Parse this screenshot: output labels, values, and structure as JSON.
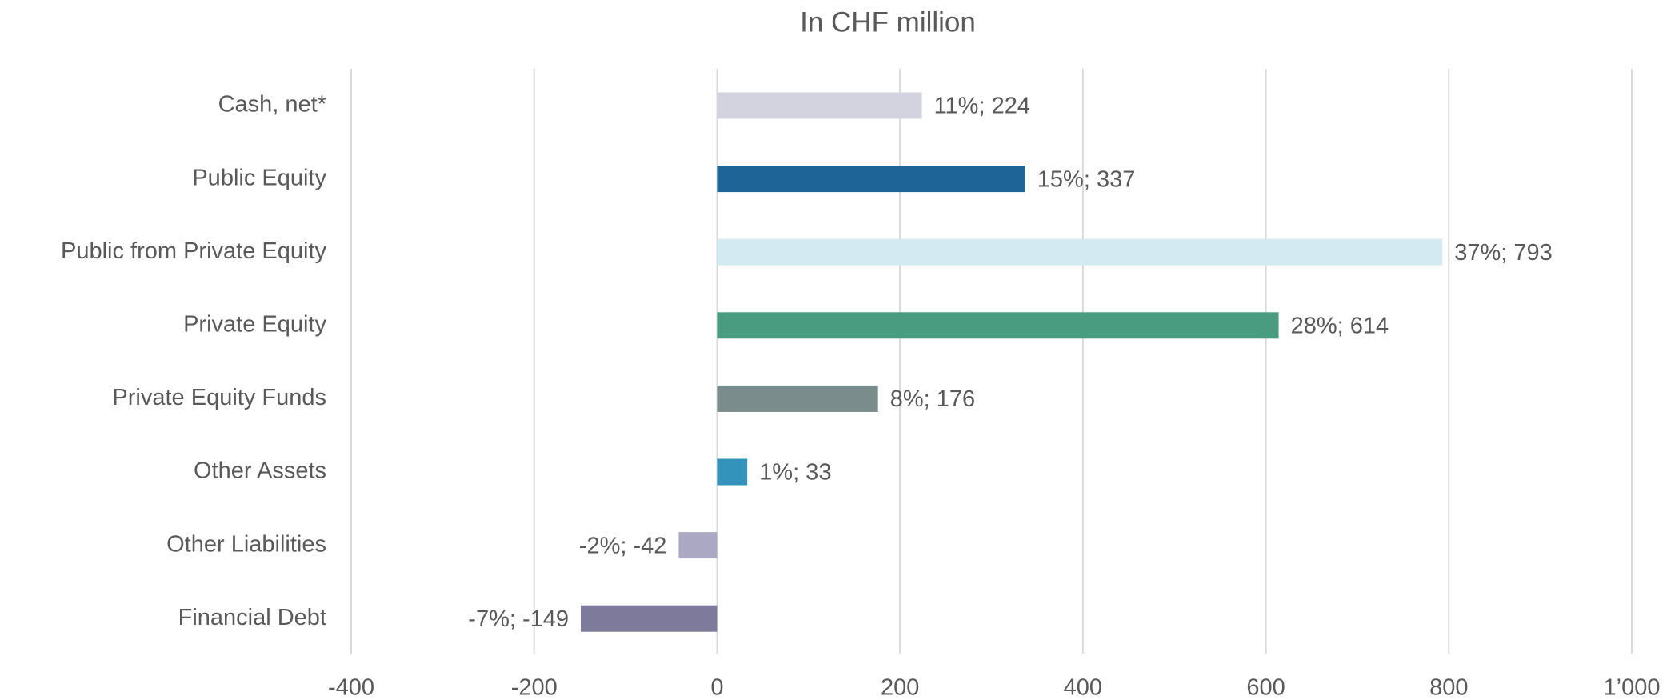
{
  "chart_data": {
    "type": "bar",
    "orientation": "horizontal",
    "title": "In CHF million",
    "categories": [
      "Cash, net*",
      "Public Equity",
      "Public from Private Equity",
      "Private Equity",
      "Private Equity Funds",
      "Other Assets",
      "Other Liabilities",
      "Financial Debt"
    ],
    "values": [
      224,
      337,
      793,
      614,
      176,
      33,
      -42,
      -149
    ],
    "value_labels": [
      "11%; 224",
      "15%; 337",
      "37%; 793",
      "28%; 614",
      "8%; 176",
      "1%; 33",
      "-2%; -42",
      "-7%; -149"
    ],
    "colors": [
      "#d3d3e0",
      "#1f6496",
      "#d4eaf3",
      "#4a9c80",
      "#7a8c8c",
      "#3393bb",
      "#aba8c4",
      "#7e7a9c"
    ],
    "xlim": [
      -400,
      1000
    ],
    "xticks": [
      -400,
      -200,
      0,
      200,
      400,
      600,
      800,
      {
        "value": 1000,
        "label": "1’000"
      }
    ],
    "grid": true
  }
}
